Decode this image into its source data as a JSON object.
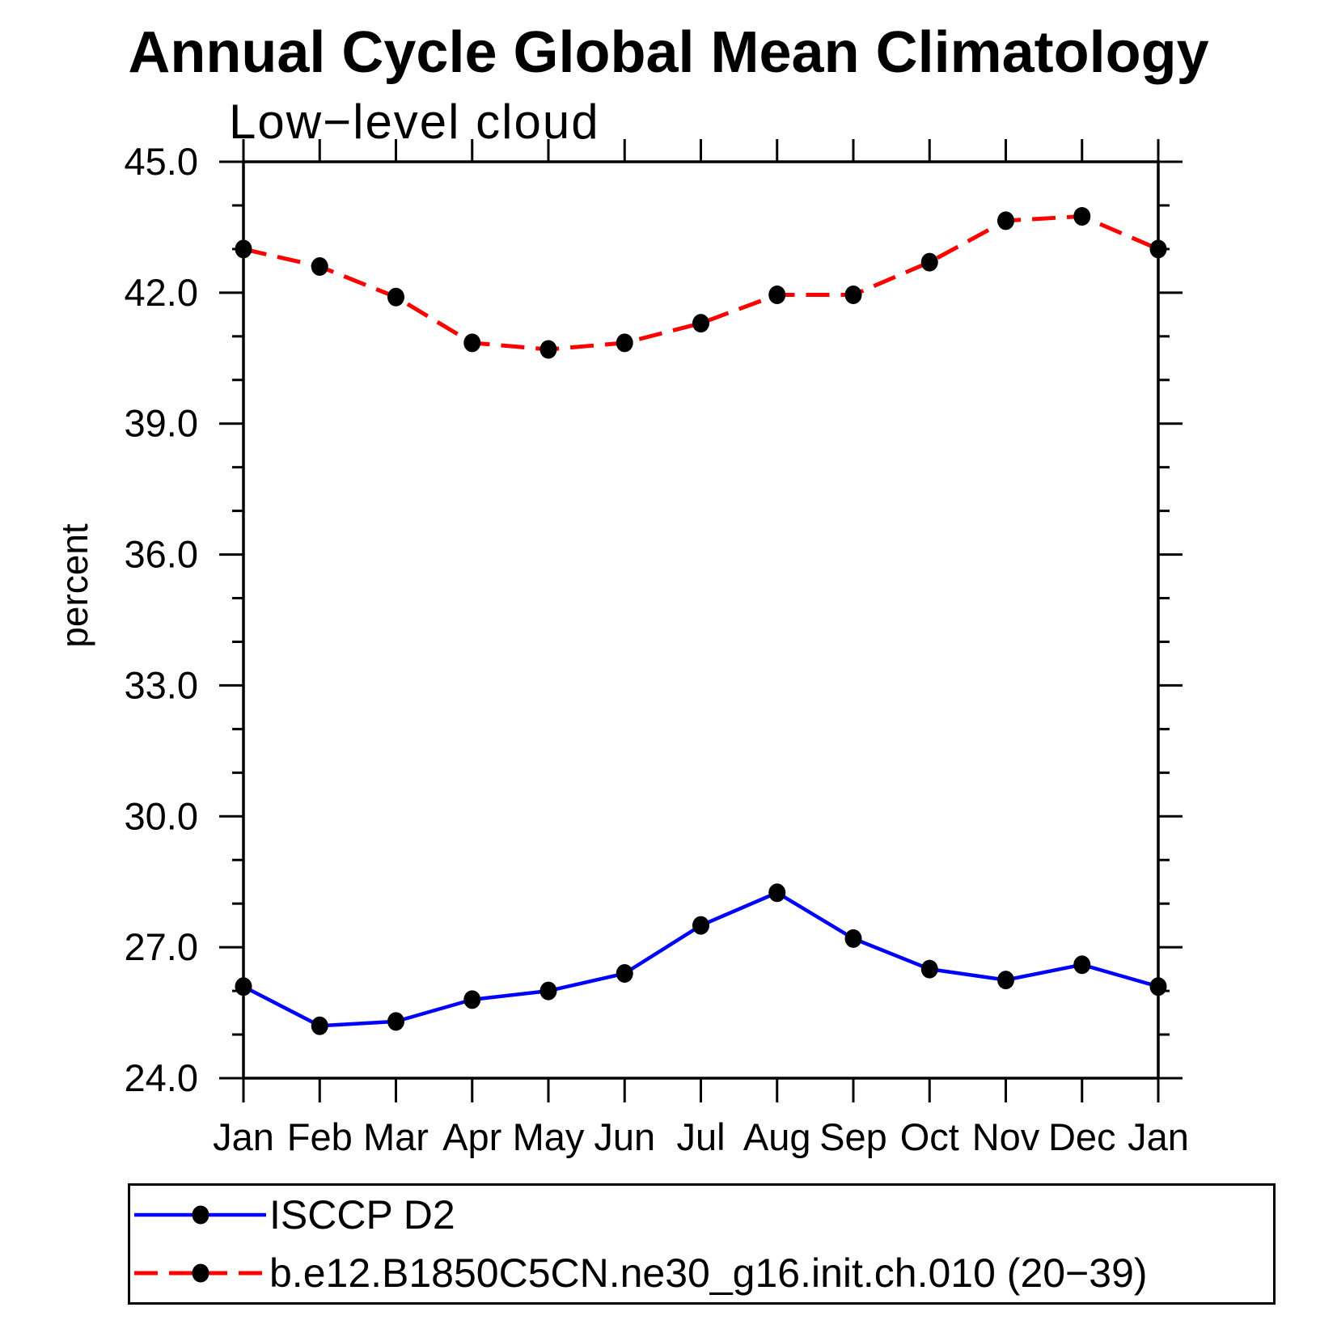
{
  "title": "Annual Cycle Global Mean Climatology",
  "subtitle": "Low−level cloud",
  "ylabel": "percent",
  "colors": {
    "obs_line": "#0000ff",
    "model_line": "#ff0000",
    "marker": "#000000",
    "axis": "#000000"
  },
  "legend": {
    "entries": [
      {
        "label": "ISCCP D2",
        "color": "#0000ff",
        "style": "solid"
      },
      {
        "label": "b.e12.B1850C5CN.ne30_g16.init.ch.010 (20−39)",
        "color": "#ff0000",
        "style": "dashed"
      }
    ]
  },
  "chart_data": {
    "type": "line",
    "title": "Annual Cycle Global Mean Climatology",
    "subtitle": "Low−level cloud",
    "xlabel": "",
    "ylabel": "percent",
    "categories": [
      "Jan",
      "Feb",
      "Mar",
      "Apr",
      "May",
      "Jun",
      "Jul",
      "Aug",
      "Sep",
      "Oct",
      "Nov",
      "Dec",
      "Jan"
    ],
    "series": [
      {
        "name": "ISCCP D2",
        "color": "#0000ff",
        "dash": false,
        "marker": "filled-circle",
        "values": [
          26.1,
          25.2,
          25.3,
          25.8,
          26.0,
          26.4,
          27.5,
          28.25,
          27.2,
          26.5,
          26.25,
          26.6,
          26.1
        ]
      },
      {
        "name": "b.e12.B1850C5CN.ne30_g16.init.ch.010 (20−39)",
        "color": "#ff0000",
        "dash": true,
        "marker": "filled-circle",
        "values": [
          43.0,
          42.6,
          41.9,
          40.85,
          40.7,
          40.85,
          41.3,
          41.95,
          41.95,
          42.7,
          43.65,
          43.75,
          43.0
        ]
      }
    ],
    "ylim": [
      24.0,
      45.0
    ],
    "ytick_major": [
      45.0,
      42.0,
      39.0,
      36.0,
      33.0,
      30.0,
      27.0,
      24.0
    ],
    "ytick_labels": [
      "45.0",
      "42.0",
      "39.0",
      "36.0",
      "33.0",
      "30.0",
      "27.0",
      "24.0"
    ],
    "ytick_minor_step": 1.0,
    "grid": false,
    "legend_position": "bottom",
    "units": "percent"
  }
}
